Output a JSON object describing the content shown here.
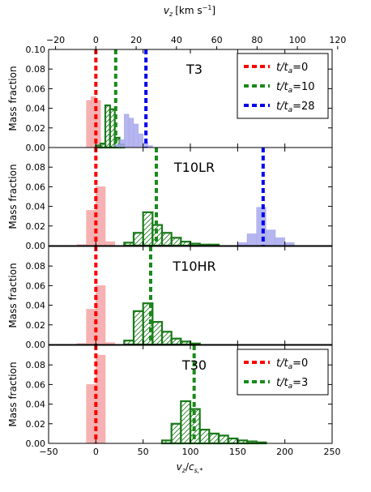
{
  "chart_data": {
    "type": "bar",
    "xlabel": "v_z/c_s,*",
    "xlabel_main": "v",
    "xlabel_sub": "z",
    "xlabel_over": "c",
    "xlabel_over_sub": "s,*",
    "xlim": [
      -50,
      250
    ],
    "xticks": [
      -50,
      0,
      50,
      100,
      150,
      200,
      250
    ],
    "top_axis": {
      "label": "v_z [km s^-1]",
      "label_main": "v",
      "label_sub": "z",
      "label_unit": "[km s",
      "label_exp": "−1",
      "label_close": "]",
      "ticks": [
        -20,
        0,
        20,
        40,
        60,
        80,
        100,
        120
      ],
      "scale_per_cs": 0.469
    },
    "ylabel": "Mass fraction",
    "panels": [
      {
        "name": "T3",
        "ylim": [
          0,
          0.1
        ],
        "yticks": [
          0.0,
          0.02,
          0.04,
          0.06,
          0.08,
          0.1
        ],
        "bin_width": 5,
        "series": [
          {
            "name": "t/t_a=0",
            "style": "filled",
            "color": "#f4a5a5",
            "bins": [
              {
                "x0": -10,
                "v": 0.048
              },
              {
                "x0": -5,
                "v": 0.052
              },
              {
                "x0": 0,
                "v": 0.048
              }
            ]
          },
          {
            "name": "t/t_a=10",
            "style": "hatched",
            "color": "#1a7a1a",
            "bins": [
              {
                "x0": 0,
                "v": 0.002
              },
              {
                "x0": 5,
                "v": 0.004
              },
              {
                "x0": 10,
                "v": 0.043
              },
              {
                "x0": 15,
                "v": 0.039
              },
              {
                "x0": 20,
                "v": 0.01
              },
              {
                "x0": 25,
                "v": 0.003
              }
            ]
          },
          {
            "name": "t/t_a=28",
            "style": "filled",
            "color": "#a8a8ec",
            "bins": [
              {
                "x0": 20,
                "v": 0.003
              },
              {
                "x0": 25,
                "v": 0.008
              },
              {
                "x0": 30,
                "v": 0.034
              },
              {
                "x0": 35,
                "v": 0.03
              },
              {
                "x0": 40,
                "v": 0.024
              },
              {
                "x0": 45,
                "v": 0.014
              },
              {
                "x0": 50,
                "v": 0.005
              },
              {
                "x0": 55,
                "v": 0.002
              }
            ]
          }
        ],
        "vlines": [
          {
            "x": 0,
            "color": "#ff0000"
          },
          {
            "x": 21,
            "color": "#1a8a1a"
          },
          {
            "x": 53,
            "color": "#0000ee"
          }
        ],
        "legend": {
          "placement": "top-right",
          "entries": [
            {
              "label": "t/t_a=0",
              "main": "t/t",
              "sub": "a",
              "value": "=0",
              "color": "#ff0000"
            },
            {
              "label": "t/t_a=10",
              "main": "t/t",
              "sub": "a",
              "value": "=10",
              "color": "#1a8a1a"
            },
            {
              "label": "t/t_a=28",
              "main": "t/t",
              "sub": "a",
              "value": "=28",
              "color": "#0000ee"
            }
          ]
        }
      },
      {
        "name": "T10LR",
        "ylim": [
          0,
          0.1
        ],
        "yticks": [
          0.0,
          0.02,
          0.04,
          0.06,
          0.08
        ],
        "bin_width": 10,
        "series": [
          {
            "name": "t/t_a=0",
            "style": "filled",
            "color": "#f4a5a5",
            "bins": [
              {
                "x0": -20,
                "v": 0.001
              },
              {
                "x0": -10,
                "v": 0.036
              },
              {
                "x0": 0,
                "v": 0.06
              },
              {
                "x0": 10,
                "v": 0.004
              }
            ]
          },
          {
            "name": "t/t_a=10",
            "style": "hatched",
            "color": "#1a7a1a",
            "bins": [
              {
                "x0": 30,
                "v": 0.003
              },
              {
                "x0": 40,
                "v": 0.013
              },
              {
                "x0": 50,
                "v": 0.034
              },
              {
                "x0": 60,
                "v": 0.021
              },
              {
                "x0": 70,
                "v": 0.013
              },
              {
                "x0": 80,
                "v": 0.008
              },
              {
                "x0": 90,
                "v": 0.004
              },
              {
                "x0": 100,
                "v": 0.002
              },
              {
                "x0": 110,
                "v": 0.001
              },
              {
                "x0": 120,
                "v": 0.001
              }
            ]
          },
          {
            "name": "t/t_a=28",
            "style": "filled",
            "color": "#a8a8ec",
            "bins": [
              {
                "x0": 150,
                "v": 0.003
              },
              {
                "x0": 160,
                "v": 0.012
              },
              {
                "x0": 170,
                "v": 0.039
              },
              {
                "x0": 180,
                "v": 0.016
              },
              {
                "x0": 190,
                "v": 0.008
              },
              {
                "x0": 200,
                "v": 0.003
              }
            ]
          }
        ],
        "vlines": [
          {
            "x": 0,
            "color": "#ff0000"
          },
          {
            "x": 64,
            "color": "#1a8a1a"
          },
          {
            "x": 177,
            "color": "#0000ee"
          }
        ],
        "legend": null
      },
      {
        "name": "T10HR",
        "ylim": [
          0,
          0.1
        ],
        "yticks": [
          0.0,
          0.02,
          0.04,
          0.06,
          0.08
        ],
        "bin_width": 10,
        "series": [
          {
            "name": "t/t_a=0",
            "style": "filled",
            "color": "#f4a5a5",
            "bins": [
              {
                "x0": -20,
                "v": 0.001
              },
              {
                "x0": -10,
                "v": 0.036
              },
              {
                "x0": 0,
                "v": 0.06
              },
              {
                "x0": 10,
                "v": 0.002
              }
            ]
          },
          {
            "name": "t/t_a=10",
            "style": "hatched",
            "color": "#1a7a1a",
            "bins": [
              {
                "x0": 30,
                "v": 0.004
              },
              {
                "x0": 40,
                "v": 0.034
              },
              {
                "x0": 50,
                "v": 0.042
              },
              {
                "x0": 60,
                "v": 0.023
              },
              {
                "x0": 70,
                "v": 0.013
              },
              {
                "x0": 80,
                "v": 0.006
              },
              {
                "x0": 90,
                "v": 0.003
              },
              {
                "x0": 100,
                "v": 0.001
              }
            ]
          }
        ],
        "vlines": [
          {
            "x": 0,
            "color": "#ff0000"
          },
          {
            "x": 58,
            "color": "#1a8a1a"
          }
        ],
        "legend": null
      },
      {
        "name": "T30",
        "ylim": [
          0,
          0.1
        ],
        "yticks": [
          0.0,
          0.02,
          0.04,
          0.06,
          0.08
        ],
        "bin_width": 10,
        "series": [
          {
            "name": "t/t_a=0",
            "style": "filled",
            "color": "#f4a5a5",
            "bins": [
              {
                "x0": -10,
                "v": 0.06
              },
              {
                "x0": 0,
                "v": 0.09
              }
            ]
          },
          {
            "name": "t/t_a=3",
            "style": "hatched",
            "color": "#1a7a1a",
            "bins": [
              {
                "x0": 70,
                "v": 0.003
              },
              {
                "x0": 80,
                "v": 0.02
              },
              {
                "x0": 90,
                "v": 0.043
              },
              {
                "x0": 100,
                "v": 0.035
              },
              {
                "x0": 110,
                "v": 0.014
              },
              {
                "x0": 120,
                "v": 0.01
              },
              {
                "x0": 130,
                "v": 0.008
              },
              {
                "x0": 140,
                "v": 0.005
              },
              {
                "x0": 150,
                "v": 0.003
              },
              {
                "x0": 160,
                "v": 0.002
              },
              {
                "x0": 170,
                "v": 0.001
              }
            ]
          }
        ],
        "vlines": [
          {
            "x": 0,
            "color": "#ff0000"
          },
          {
            "x": 104,
            "color": "#1a8a1a"
          }
        ],
        "legend": {
          "placement": "top-right",
          "entries": [
            {
              "label": "t/t_a=0",
              "main": "t/t",
              "sub": "a",
              "value": "=0",
              "color": "#ff0000"
            },
            {
              "label": "t/t_a=3",
              "main": "t/t",
              "sub": "a",
              "value": "=3",
              "color": "#1a8a1a"
            }
          ]
        }
      }
    ]
  }
}
